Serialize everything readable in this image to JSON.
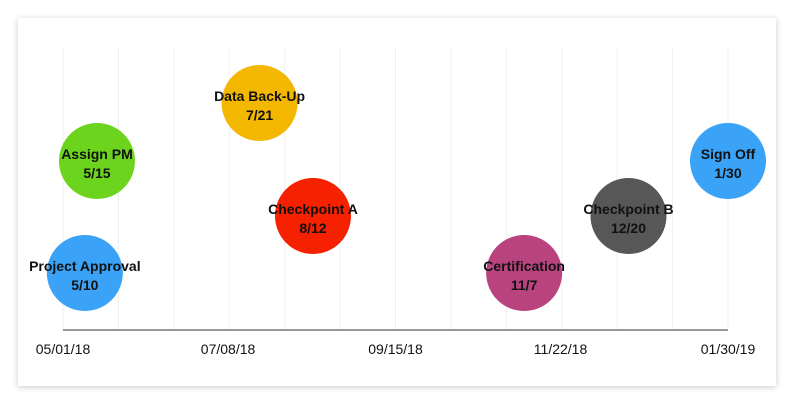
{
  "chart_data": {
    "type": "scatter",
    "title": "",
    "xlabel": "",
    "ylabel": "",
    "x_axis": {
      "type": "date",
      "range": [
        "2018-05-01",
        "2019-01-30"
      ],
      "tick_labels": [
        "05/01/18",
        "07/08/18",
        "09/15/18",
        "11/22/18",
        "01/30/19"
      ],
      "tick_dates": [
        "2018-05-01",
        "2018-07-08",
        "2018-09-15",
        "2018-11-22",
        "2019-01-30"
      ]
    },
    "grid": true,
    "legend": "none",
    "milestones": [
      {
        "name": "Project Approval",
        "date_label": "5/10",
        "date": "2018-05-10",
        "level": 1,
        "color": "#3aa3f7"
      },
      {
        "name": "Assign PM",
        "date_label": "5/15",
        "date": "2018-05-15",
        "level": 3,
        "color": "#6dd41e"
      },
      {
        "name": "Data Back-Up",
        "date_label": "7/21",
        "date": "2018-07-21",
        "level": 4,
        "color": "#f4b700"
      },
      {
        "name": "Checkpoint A",
        "date_label": "8/12",
        "date": "2018-08-12",
        "level": 2,
        "color": "#f52100"
      },
      {
        "name": "Certification",
        "date_label": "11/7",
        "date": "2018-11-07",
        "level": 1,
        "color": "#b8437f"
      },
      {
        "name": "Checkpoint B",
        "date_label": "12/20",
        "date": "2018-12-20",
        "level": 2,
        "color": "#575757"
      },
      {
        "name": "Sign Off",
        "date_label": "1/30",
        "date": "2019-01-30",
        "level": 3,
        "color": "#3aa3f7"
      }
    ]
  }
}
